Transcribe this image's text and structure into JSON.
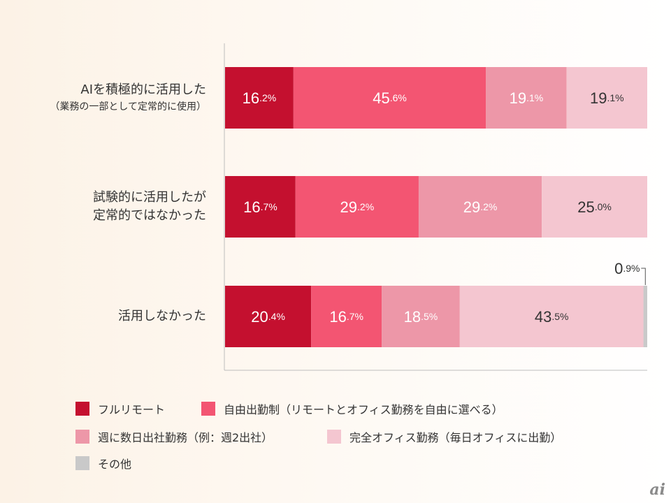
{
  "chart_data": {
    "type": "bar",
    "orientation": "horizontal",
    "stacked": true,
    "unit": "%",
    "categories": [
      {
        "label_lines": [
          "AIを積極的に活用した"
        ],
        "sub_label": "（業務の一部として定常的に使用）"
      },
      {
        "label_lines": [
          "試験的に活用したが",
          "定常的ではなかった"
        ],
        "sub_label": ""
      },
      {
        "label_lines": [
          "活用しなかった"
        ],
        "sub_label": ""
      }
    ],
    "series": [
      {
        "name": "フルリモート",
        "color": "#c4102f",
        "values": [
          16.2,
          16.7,
          20.4
        ],
        "label_color": "#ffffff"
      },
      {
        "name": "自由出勤制（リモートとオフィス勤務を自由に選べる）",
        "color": "#f35572",
        "values": [
          45.6,
          29.2,
          16.7
        ],
        "label_color": "#ffffff"
      },
      {
        "name": "週に数日出社勤務（例：週2出社）",
        "color": "#ed97a8",
        "values": [
          19.1,
          29.2,
          18.5
        ],
        "label_color": "#ffffff"
      },
      {
        "name": "完全オフィス勤務（毎日オフィスに出勤）",
        "color": "#f4c6d0",
        "values": [
          19.1,
          25.0,
          43.5
        ],
        "label_color": "#333333"
      },
      {
        "name": "その他",
        "color": "#c9c9c9",
        "values": [
          0,
          0,
          0.9
        ],
        "label_color": "#333333"
      }
    ],
    "data_labels": [
      [
        "16.2%",
        "45.6%",
        "19.1%",
        "19.1%",
        ""
      ],
      [
        "16.7%",
        "29.2%",
        "29.2%",
        "25.0%",
        ""
      ],
      [
        "20.4%",
        "16.7%",
        "18.5%",
        "43.5%",
        "0.9%"
      ]
    ],
    "xlim": [
      0,
      100
    ],
    "grid": false,
    "legend_position": "bottom"
  },
  "watermark": "ai"
}
